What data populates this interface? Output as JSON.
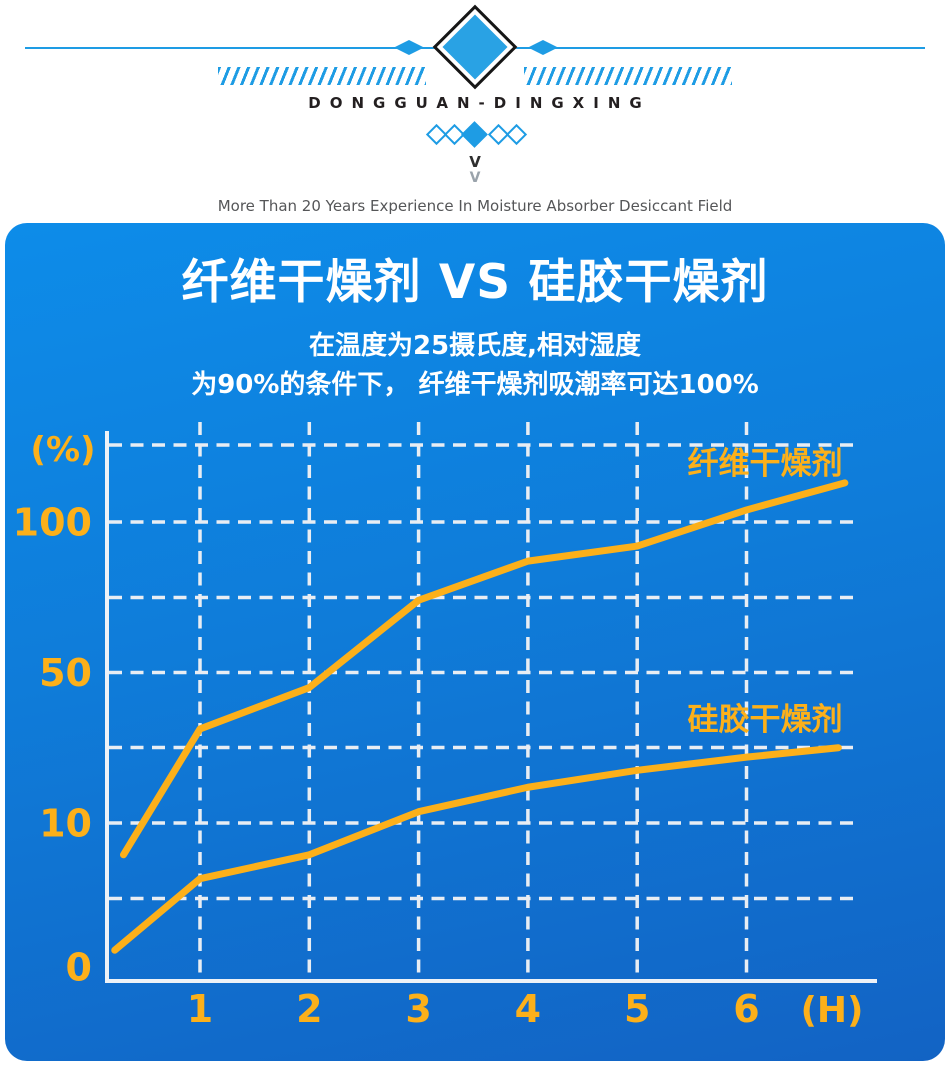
{
  "header": {
    "brand": "DONGGUAN-DINGXING",
    "tagline": "More Than 20 Years Experience In Moisture Absorber Desiccant Field",
    "chevron_primary": "V",
    "chevron_secondary": "V"
  },
  "panel": {
    "title": "纤维干燥剂  VS  硅胶干燥剂",
    "subtitle_line1": "在温度为25摄氏度,相对湿度",
    "subtitle_line2": "为90%的条件下， 纤维干燥剂吸潮率可达100%"
  },
  "colors": {
    "header_blue": "#1e9ce4",
    "panel_gradient_top": "#0d8ce9",
    "panel_gradient_bottom": "#1263c4",
    "series_orange": "#fcb01a",
    "grid_white": "#e8edf3",
    "axis_white": "#eef2f7",
    "title_white": "#ffffff"
  },
  "chart_data": {
    "type": "line",
    "title": "纤维干燥剂 VS 硅胶干燥剂",
    "xlabel": "(H)",
    "ylabel": "(%)",
    "grid": true,
    "legend_position": "on-chart",
    "x_axis": {
      "unit": "(H)",
      "ticks": [
        "1",
        "2",
        "3",
        "4",
        "5",
        "6"
      ]
    },
    "y_axis": {
      "unit": "(%)",
      "ticks": [
        "100",
        "50",
        "10",
        "0"
      ],
      "scale": "nonlinear-decorative (0,10,50,100 nearly evenly spaced)"
    },
    "series": [
      {
        "name": "纤维干燥剂",
        "color": "#fcb01a",
        "x": [
          0.3,
          1,
          2,
          3,
          4,
          5,
          6,
          6.9
        ],
        "values": [
          8,
          35,
          46,
          74,
          87,
          92,
          104,
          113
        ]
      },
      {
        "name": "硅胶干燥剂",
        "color": "#fcb01a",
        "x": [
          0.22,
          1,
          2,
          3,
          4,
          5,
          6,
          6.84
        ],
        "values": [
          2,
          6.5,
          8,
          13,
          19.5,
          24,
          27.5,
          30
        ]
      }
    ]
  }
}
